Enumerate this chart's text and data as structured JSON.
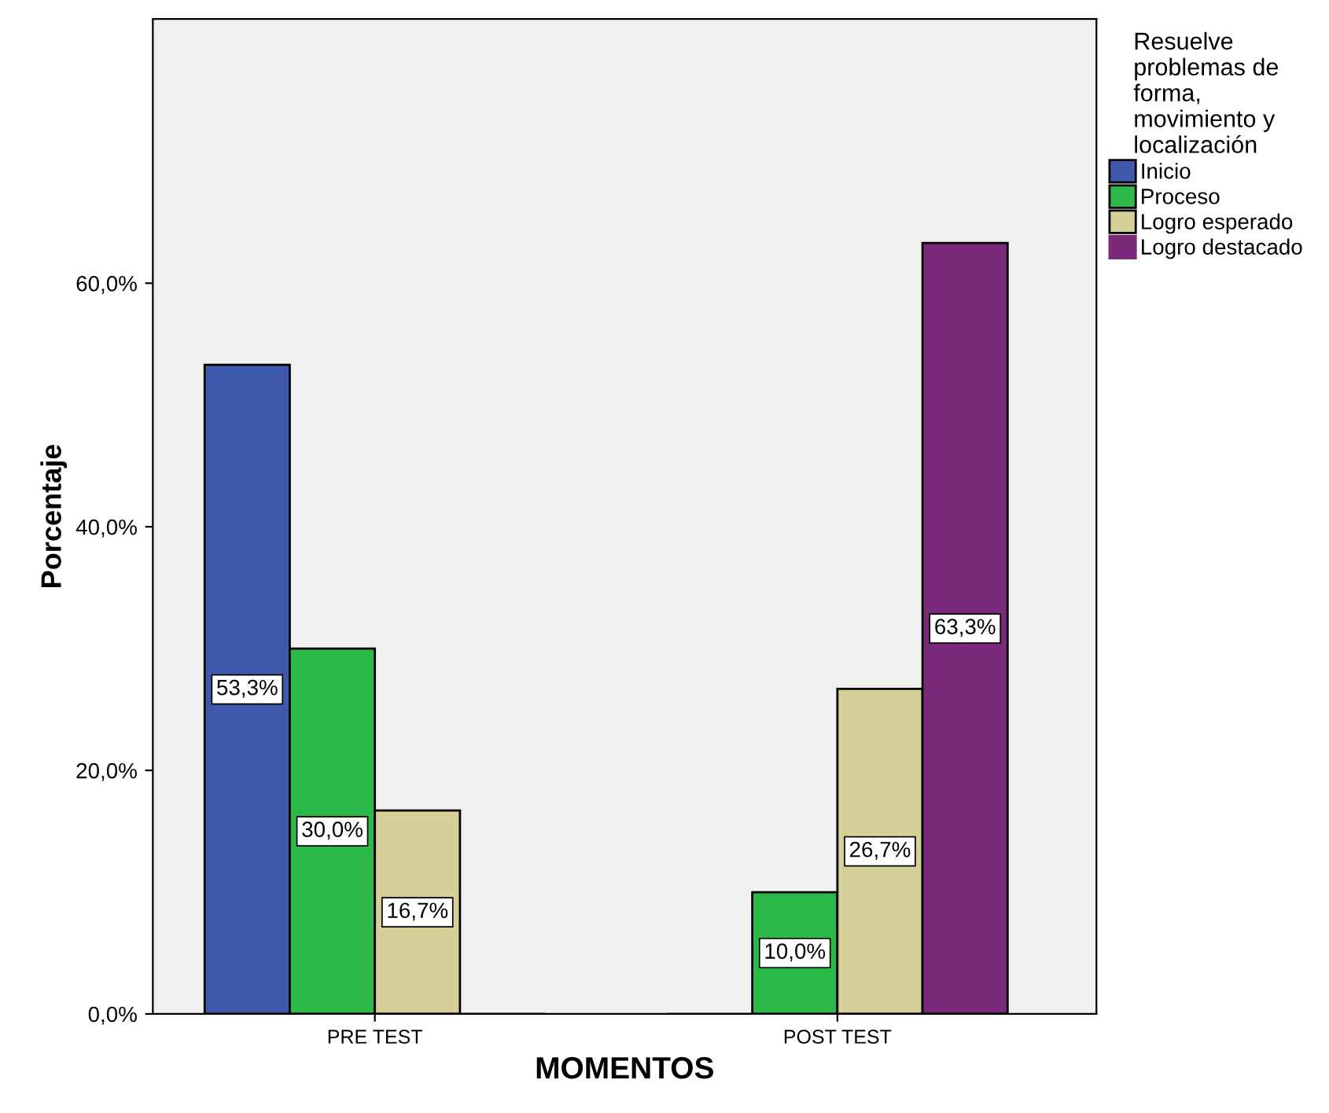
{
  "chart_data": {
    "type": "bar",
    "xlabel": "MOMENTOS",
    "ylabel": "Porcentaje",
    "legend_title": "Resuelve\nproblemas de\nforma,\nmovimiento y\nlocalización",
    "categories": [
      "PRE TEST",
      "POST TEST"
    ],
    "series": [
      {
        "name": "Inicio",
        "color": "#3e58ac",
        "values": [
          53.3,
          0
        ],
        "value_labels": [
          "53,3%",
          null
        ]
      },
      {
        "name": "Proceso",
        "color": "#2db84a",
        "values": [
          30.0,
          10.0
        ],
        "value_labels": [
          "30,0%",
          "10,0%"
        ]
      },
      {
        "name": "Logro esperado",
        "color": "#d6cf97",
        "values": [
          16.7,
          26.7
        ],
        "value_labels": [
          "16,7%",
          "26,7%"
        ]
      },
      {
        "name": "Logro destacado",
        "color": "#7b2a7b",
        "values": [
          0,
          63.3
        ],
        "value_labels": [
          null,
          "63,3%"
        ]
      }
    ],
    "ylim": [
      0,
      81.7
    ],
    "yticks": [
      {
        "value": 0,
        "label": "0,0%"
      },
      {
        "value": 20,
        "label": "20,0%"
      },
      {
        "value": 40,
        "label": "40,0%"
      },
      {
        "value": 60,
        "label": "60,0%"
      }
    ],
    "grid": false,
    "legend": "top right"
  }
}
